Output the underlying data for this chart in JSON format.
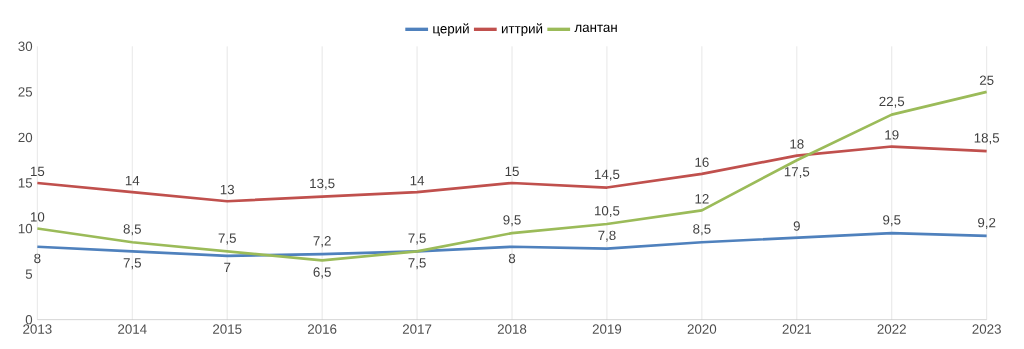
{
  "chart_data": {
    "type": "line",
    "categories": [
      "2013",
      "2014",
      "2015",
      "2016",
      "2017",
      "2018",
      "2019",
      "2020",
      "2021",
      "2022",
      "2023"
    ],
    "series": [
      {
        "name": "церий",
        "color": "#4f81bd",
        "values": [
          8,
          7.5,
          7,
          7.2,
          7.5,
          8,
          7.8,
          8.5,
          9,
          9.5,
          9.2
        ],
        "value_labels": [
          "8",
          "7,5",
          "7",
          "7,2",
          "7,5",
          "8",
          "7,8",
          "8,5",
          "9",
          "9,5",
          "9,2"
        ]
      },
      {
        "name": "иттрий",
        "color": "#c0504d",
        "values": [
          15,
          14,
          13,
          13.5,
          14,
          15,
          14.5,
          16,
          18,
          19,
          18.5
        ],
        "value_labels": [
          "15",
          "14",
          "13",
          "13,5",
          "14",
          "15",
          "14,5",
          "16",
          "18",
          "19",
          "18,5"
        ]
      },
      {
        "name": "лантан",
        "color": "#9bbb59",
        "values": [
          10,
          8.5,
          7.5,
          6.5,
          7.5,
          9.5,
          10.5,
          12,
          17.5,
          22.5,
          25
        ],
        "value_labels": [
          "10",
          "8,5",
          "7,5",
          "6,5",
          "7,5",
          "9,5",
          "10,5",
          "12",
          "17,5",
          "22,5",
          "25"
        ]
      }
    ],
    "ylim": [
      0,
      30
    ],
    "yticks": [
      0,
      5,
      10,
      15,
      20,
      25,
      30
    ],
    "grid": "x",
    "legend": "top",
    "marker": "none",
    "line_style": "solid"
  }
}
